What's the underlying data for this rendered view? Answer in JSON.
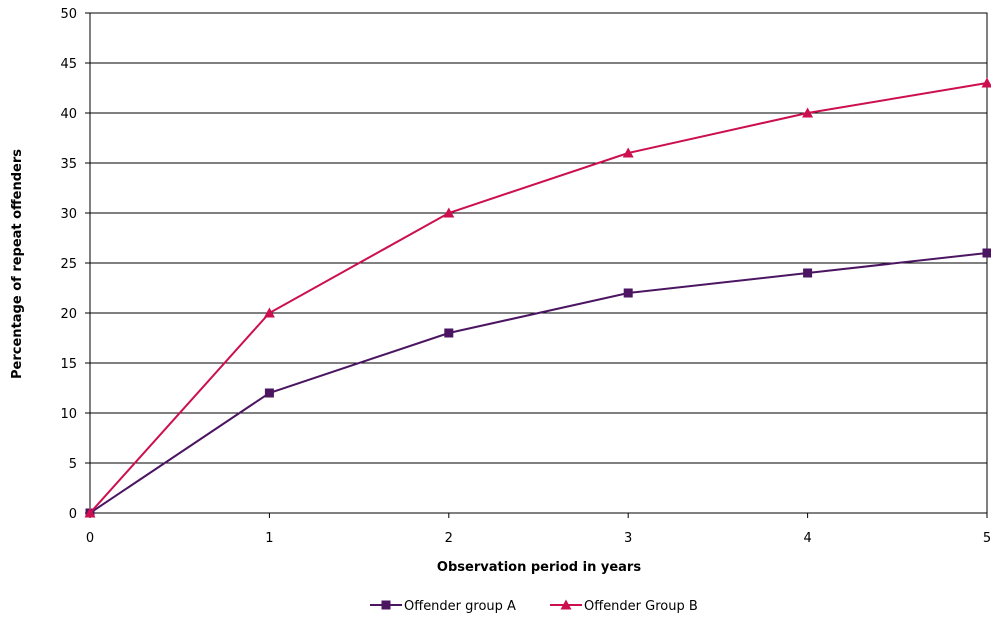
{
  "chart_data": {
    "type": "line",
    "title": "",
    "xlabel": "Observation period in years",
    "ylabel": "Percentage of repeat offenders",
    "x": [
      0,
      1,
      2,
      3,
      4,
      5
    ],
    "xlim": [
      0,
      5
    ],
    "ylim": [
      0,
      50
    ],
    "xticks": [
      0,
      1,
      2,
      3,
      4,
      5
    ],
    "yticks": [
      0,
      5,
      10,
      15,
      20,
      25,
      30,
      35,
      40,
      45,
      50
    ],
    "grid": "horizontal",
    "legend_position": "bottom",
    "series": [
      {
        "name": "Offender group A",
        "values": [
          0,
          12,
          18,
          22,
          24,
          26
        ],
        "color": "#4b1562",
        "marker": "square"
      },
      {
        "name": "Offender Group B",
        "values": [
          0,
          20,
          30,
          36,
          40,
          43
        ],
        "color": "#cc0f4f",
        "marker": "triangle"
      }
    ]
  }
}
